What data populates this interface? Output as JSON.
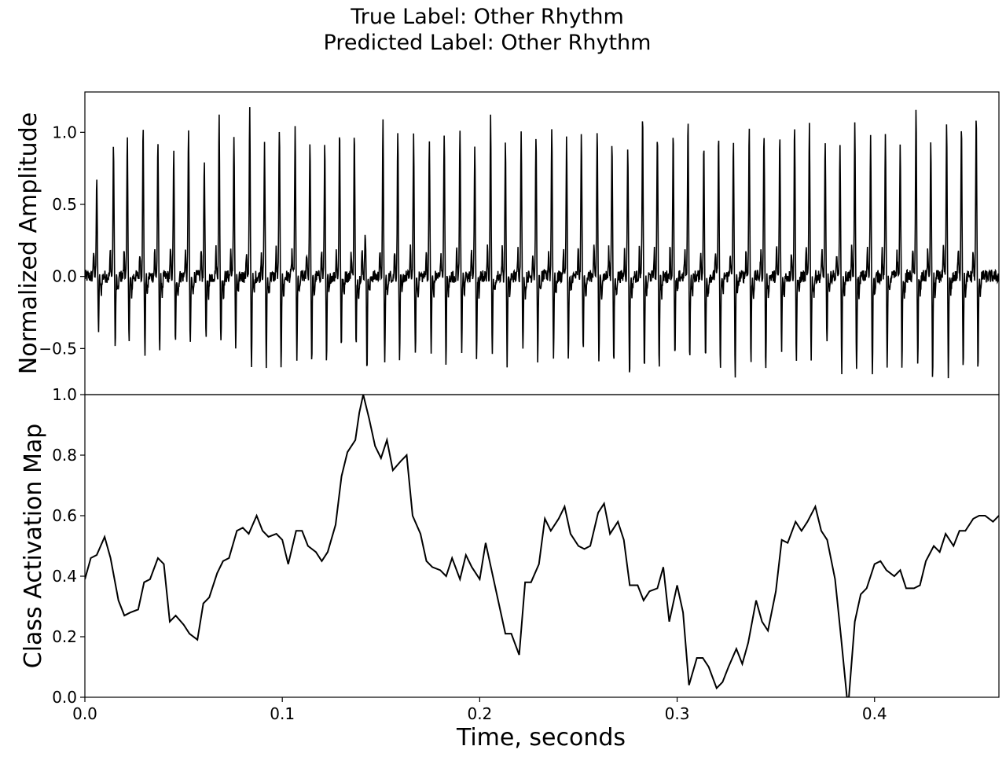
{
  "title_lines": [
    "True Label: Other Rhythm",
    "Predicted Label: Other Rhythm"
  ],
  "chart_data": [
    {
      "type": "line",
      "title": "",
      "xlabel": "",
      "ylabel": "Normalized Amplitude",
      "xlim": [
        0.0,
        0.463
      ],
      "ylim": [
        -0.82,
        1.28
      ],
      "yticks": [
        -0.5,
        0.0,
        0.5,
        1.0
      ],
      "ytick_labels": [
        "−0.5",
        "0.0",
        "0.5",
        "1.0"
      ],
      "xticks": [],
      "grid": false,
      "line_color": "#000000",
      "beat_times": [
        0.006,
        0.0145,
        0.0215,
        0.0295,
        0.037,
        0.045,
        0.0525,
        0.0605,
        0.068,
        0.0755,
        0.0835,
        0.091,
        0.0985,
        0.1065,
        0.114,
        0.1215,
        0.129,
        0.1365,
        0.142,
        0.151,
        0.1585,
        0.1665,
        0.1745,
        0.182,
        0.19,
        0.1975,
        0.2055,
        0.213,
        0.221,
        0.2285,
        0.2365,
        0.244,
        0.2515,
        0.2595,
        0.267,
        0.275,
        0.2825,
        0.29,
        0.298,
        0.3055,
        0.3135,
        0.321,
        0.3285,
        0.3365,
        0.344,
        0.352,
        0.3595,
        0.367,
        0.375,
        0.3825,
        0.39,
        0.398,
        0.4055,
        0.413,
        0.421,
        0.4285,
        0.4365,
        0.444,
        0.4515
      ],
      "beat_peaks": [
        0.7,
        0.9,
        0.95,
        1.03,
        0.92,
        0.86,
        1.05,
        0.81,
        1.1,
        1.0,
        1.14,
        0.9,
        1.05,
        1.03,
        0.95,
        0.92,
        1.03,
        1.0,
        0.32,
        1.06,
        1.02,
        0.95,
        0.94,
        1.02,
        1.05,
        0.92,
        1.13,
        0.92,
        1.05,
        1.0,
        1.06,
        0.96,
        0.99,
        1.03,
        0.96,
        0.91,
        1.09,
        1.0,
        1.01,
        1.1,
        0.9,
        0.95,
        0.94,
        1.04,
        1.01,
        0.97,
        1.07,
        1.05,
        0.91,
        0.88,
        1.03,
        0.98,
        0.95,
        0.9,
        1.2,
        0.95,
        1.03,
        1.07,
        1.12
      ],
      "beat_troughs": [
        -0.37,
        -0.48,
        -0.47,
        -0.55,
        -0.51,
        -0.48,
        -0.5,
        -0.47,
        -0.47,
        -0.5,
        -0.64,
        -0.62,
        -0.61,
        -0.57,
        -0.62,
        -0.63,
        -0.48,
        -0.51,
        -0.63,
        -0.62,
        -0.6,
        -0.57,
        -0.54,
        -0.61,
        -0.52,
        -0.57,
        -0.55,
        -0.6,
        -0.54,
        -0.59,
        -0.54,
        -0.6,
        -0.52,
        -0.59,
        -0.63,
        -0.71,
        -0.69,
        -0.64,
        -0.59,
        -0.56,
        -0.61,
        -0.67,
        -0.71,
        -0.6,
        -0.68,
        -0.51,
        -0.56,
        -0.55,
        -0.47,
        -0.64,
        -0.68,
        -0.67,
        -0.61,
        -0.64,
        -0.64,
        -0.71,
        -0.68,
        -0.63,
        -0.64
      ]
    },
    {
      "type": "line",
      "title": "",
      "xlabel": "Time, seconds",
      "ylabel": "Class Activation Map",
      "xlim": [
        0.0,
        0.463
      ],
      "ylim": [
        0.0,
        1.0
      ],
      "yticks": [
        0.0,
        0.2,
        0.4,
        0.6,
        0.8,
        1.0
      ],
      "ytick_labels": [
        "0.0",
        "0.2",
        "0.4",
        "0.6",
        "0.8",
        "1.0"
      ],
      "xticks": [
        0.0,
        0.1,
        0.2,
        0.3,
        0.4
      ],
      "xtick_labels": [
        "0.0",
        "0.1",
        "0.2",
        "0.3",
        "0.4"
      ],
      "grid": false,
      "line_color": "#000000",
      "x": [
        0.0,
        0.003,
        0.006,
        0.01,
        0.013,
        0.017,
        0.02,
        0.023,
        0.027,
        0.03,
        0.033,
        0.037,
        0.04,
        0.043,
        0.046,
        0.05,
        0.053,
        0.057,
        0.06,
        0.063,
        0.067,
        0.07,
        0.073,
        0.077,
        0.08,
        0.083,
        0.087,
        0.09,
        0.093,
        0.097,
        0.1,
        0.103,
        0.107,
        0.11,
        0.113,
        0.117,
        0.12,
        0.123,
        0.127,
        0.13,
        0.133,
        0.137,
        0.139,
        0.141,
        0.144,
        0.147,
        0.15,
        0.153,
        0.156,
        0.16,
        0.163,
        0.166,
        0.17,
        0.173,
        0.176,
        0.18,
        0.183,
        0.186,
        0.19,
        0.193,
        0.196,
        0.2,
        0.203,
        0.206,
        0.21,
        0.213,
        0.216,
        0.22,
        0.223,
        0.226,
        0.23,
        0.233,
        0.236,
        0.24,
        0.243,
        0.246,
        0.25,
        0.253,
        0.256,
        0.26,
        0.263,
        0.266,
        0.27,
        0.273,
        0.276,
        0.28,
        0.283,
        0.286,
        0.29,
        0.293,
        0.296,
        0.3,
        0.303,
        0.306,
        0.31,
        0.313,
        0.316,
        0.32,
        0.323,
        0.326,
        0.33,
        0.333,
        0.336,
        0.34,
        0.343,
        0.346,
        0.35,
        0.353,
        0.356,
        0.36,
        0.363,
        0.366,
        0.37,
        0.373,
        0.376,
        0.38,
        0.383,
        0.386,
        0.387,
        0.39,
        0.393,
        0.396,
        0.4,
        0.403,
        0.406,
        0.41,
        0.413,
        0.416,
        0.42,
        0.423,
        0.426,
        0.43,
        0.433,
        0.436,
        0.44,
        0.443,
        0.446,
        0.45,
        0.453,
        0.456,
        0.46,
        0.463
      ],
      "y": [
        0.39,
        0.46,
        0.47,
        0.53,
        0.46,
        0.32,
        0.27,
        0.28,
        0.29,
        0.38,
        0.39,
        0.46,
        0.44,
        0.25,
        0.27,
        0.24,
        0.21,
        0.19,
        0.31,
        0.33,
        0.41,
        0.45,
        0.46,
        0.55,
        0.56,
        0.54,
        0.6,
        0.55,
        0.53,
        0.54,
        0.52,
        0.44,
        0.55,
        0.55,
        0.5,
        0.48,
        0.45,
        0.48,
        0.57,
        0.73,
        0.81,
        0.85,
        0.94,
        1.0,
        0.92,
        0.83,
        0.79,
        0.85,
        0.75,
        0.78,
        0.8,
        0.6,
        0.54,
        0.45,
        0.43,
        0.42,
        0.4,
        0.46,
        0.39,
        0.47,
        0.43,
        0.39,
        0.51,
        0.42,
        0.3,
        0.21,
        0.21,
        0.14,
        0.38,
        0.38,
        0.44,
        0.59,
        0.55,
        0.59,
        0.63,
        0.54,
        0.5,
        0.49,
        0.5,
        0.61,
        0.64,
        0.54,
        0.58,
        0.52,
        0.37,
        0.37,
        0.32,
        0.35,
        0.36,
        0.43,
        0.25,
        0.37,
        0.28,
        0.04,
        0.13,
        0.13,
        0.1,
        0.03,
        0.05,
        0.1,
        0.16,
        0.11,
        0.18,
        0.32,
        0.25,
        0.22,
        0.35,
        0.52,
        0.51,
        0.58,
        0.55,
        0.58,
        0.63,
        0.55,
        0.52,
        0.39,
        0.2,
        0.0,
        0.0,
        0.25,
        0.34,
        0.36,
        0.44,
        0.45,
        0.42,
        0.4,
        0.42,
        0.36,
        0.36,
        0.37,
        0.45,
        0.5,
        0.48,
        0.54,
        0.5,
        0.55,
        0.55,
        0.59,
        0.6,
        0.6,
        0.58,
        0.6
      ]
    }
  ]
}
